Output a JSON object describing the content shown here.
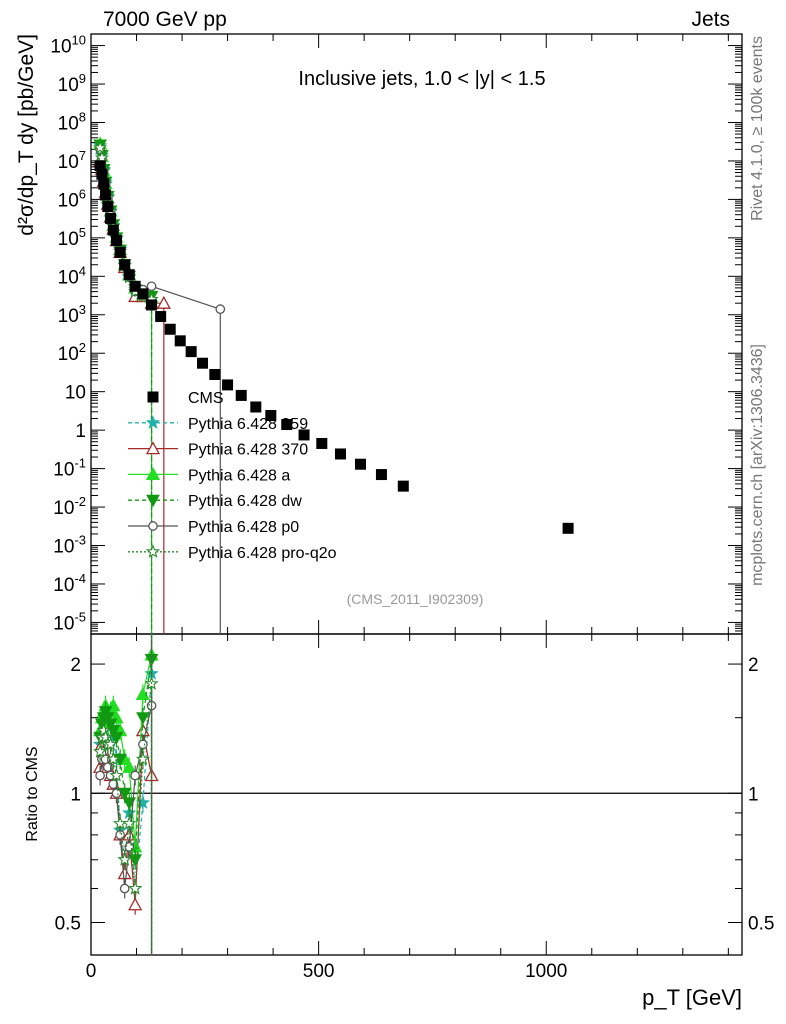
{
  "header": {
    "left": "7000 GeV pp",
    "right": "Jets"
  },
  "side": {
    "rivet": "Rivet 4.1.0, ≥ 100k events",
    "mcplots": "mcplots.cern.ch [arXiv:1306.3436]"
  },
  "chart_data": [
    {
      "type": "scatter",
      "title": "Inclusive jets, 1.0 < |y| < 1.5",
      "ylabel": "d²σ/dp_T dy [pb/GeV]",
      "xlabel": "p_T [GeV]",
      "yscale": "log",
      "xlim": [
        0,
        1430
      ],
      "ylim": [
        5e-06,
        20000000000.0
      ],
      "watermark": "(CMS_2011_I902309)",
      "x_ticks": [
        "0",
        "500",
        "1000"
      ],
      "y_ticks": [
        "10^10",
        "10^9",
        "10^8",
        "10^7",
        "10^6",
        "10^5",
        "10^4",
        "10^3",
        "10^2",
        "10",
        "1",
        "10^-1",
        "10^-2",
        "10^-3",
        "10^-4",
        "10^-5"
      ],
      "legend": [
        "CMS",
        "Pythia 6.428 359",
        "Pythia 6.428 370",
        "Pythia 6.428 a",
        "Pythia 6.428 dw",
        "Pythia 6.428 p0",
        "Pythia 6.428 pro-q2o"
      ],
      "series": [
        {
          "name": "CMS",
          "color": "#000000",
          "marker": "square",
          "x": [
            20,
            24,
            28,
            32,
            37,
            43,
            49,
            56,
            64,
            74,
            84,
            97,
            114,
            133,
            153,
            174,
            196,
            220,
            245,
            272,
            300,
            330,
            362,
            395,
            430,
            468,
            507,
            548,
            592,
            638,
            686,
            1048
          ],
          "y": [
            7500000.0,
            4500000.0,
            2500000.0,
            1300000.0,
            650000.0,
            320000.0,
            160000.0,
            85000.0,
            42000.0,
            20000.0,
            11000.0,
            5500.0,
            3500.0,
            1800.0,
            900.0,
            420.0,
            210.0,
            110.0,
            55,
            28,
            15,
            8,
            4,
            2.4,
            1.4,
            0.75,
            0.45,
            0.24,
            0.13,
            0.07,
            0.035,
            0.0028
          ]
        },
        {
          "name": "Pythia 6.428 359",
          "color": "#20b2aa",
          "marker": "star",
          "x": [
            20,
            24,
            28,
            32,
            37,
            43,
            49,
            56,
            64,
            74,
            84,
            97,
            114,
            133
          ],
          "y": [
            25000000.0,
            14000000.0,
            6000000.0,
            2800000.0,
            1200000.0,
            500000.0,
            210000.0,
            100000.0,
            50000.0,
            20000.0,
            10000.0,
            4500.0,
            3000.0,
            2000.0
          ]
        },
        {
          "name": "Pythia 6.428 370",
          "color": "#a52a2a",
          "marker": "triangle-open",
          "x": [
            20,
            24,
            28,
            32,
            37,
            43,
            49,
            56,
            64,
            74,
            84,
            97,
            114,
            133,
            160
          ],
          "y": [
            10000000.0,
            6000000.0,
            3000000.0,
            1500000.0,
            750000.0,
            350000.0,
            170000.0,
            85000.0,
            42000.0,
            17000.0,
            11000.0,
            3000.0,
            3000.0,
            2000.0,
            2000.0
          ]
        },
        {
          "name": "Pythia 6.428 a",
          "color": "#22dd22",
          "marker": "triangle",
          "x": [
            20,
            24,
            28,
            32,
            37,
            43,
            49,
            56,
            64,
            74,
            84,
            97,
            114,
            133
          ],
          "y": [
            28000000.0,
            13000000.0,
            5500000.0,
            2600000.0,
            1100000.0,
            500000.0,
            210000.0,
            105000.0,
            50000.0,
            20000.0,
            11000.0,
            5000.0,
            3500.0,
            2800.0
          ]
        },
        {
          "name": "Pythia 6.428 dw",
          "color": "#119911",
          "marker": "triangle-down",
          "x": [
            20,
            24,
            28,
            32,
            37,
            43,
            49,
            56,
            64,
            74,
            84,
            97,
            114,
            133
          ],
          "y": [
            26000000.0,
            14000000.0,
            6000000.0,
            2800000.0,
            1200000.0,
            500000.0,
            220000.0,
            100000.0,
            48000.0,
            20000.0,
            10000.0,
            4500.0,
            3500.0,
            3000.0
          ]
        },
        {
          "name": "Pythia 6.428 p0",
          "color": "#555555",
          "marker": "circle-open",
          "x": [
            20,
            24,
            28,
            32,
            37,
            43,
            49,
            56,
            64,
            74,
            84,
            97,
            114,
            133,
            284
          ],
          "y": [
            20000000.0,
            11000000.0,
            5000000.0,
            2300000.0,
            1000000.0,
            450000.0,
            190000.0,
            90000.0,
            43000.0,
            18000.0,
            9500.0,
            4000.0,
            4500.0,
            5500.0,
            1400.0
          ]
        },
        {
          "name": "Pythia 6.428 pro-q2o",
          "color": "#2e8b2e",
          "marker": "star-open",
          "x": [
            20,
            24,
            28,
            32,
            37,
            43,
            49,
            56,
            64,
            74,
            84,
            97,
            114,
            133
          ],
          "y": [
            22000000.0,
            12000000.0,
            5500000.0,
            2500000.0,
            1100000.0,
            480000.0,
            200000.0,
            95000.0,
            45000.0,
            19000.0,
            9500.0,
            4000.0,
            3000.0,
            2500.0
          ]
        }
      ]
    },
    {
      "type": "scatter",
      "ylabel": "Ratio to CMS",
      "xlabel": "p_T [GeV]",
      "yscale": "log",
      "xlim": [
        0,
        1430
      ],
      "ylim": [
        0.42,
        2.35
      ],
      "y_ticks": [
        "2",
        "1",
        "0.5"
      ],
      "reference_line": 1,
      "series": [
        {
          "name": "Pythia 6.428 359",
          "color": "#20b2aa",
          "x": [
            20,
            24,
            28,
            32,
            37,
            43,
            49,
            56,
            64,
            74,
            84,
            97,
            114,
            133
          ],
          "y": [
            1.3,
            1.35,
            1.45,
            1.4,
            1.45,
            1.45,
            1.35,
            1.2,
            0.82,
            0.7,
            0.9,
            0.6,
            0.95,
            1.9
          ]
        },
        {
          "name": "Pythia 6.428 370",
          "color": "#a52a2a",
          "x": [
            20,
            24,
            28,
            32,
            37,
            43,
            49,
            56,
            64,
            74,
            84,
            97,
            114,
            133
          ],
          "y": [
            1.15,
            1.3,
            1.25,
            1.2,
            1.15,
            1.1,
            1.05,
            1.0,
            0.8,
            0.65,
            0.8,
            0.55,
            1.4,
            1.1
          ]
        },
        {
          "name": "Pythia 6.428 a",
          "color": "#22dd22",
          "x": [
            20,
            24,
            28,
            32,
            37,
            43,
            49,
            56,
            64,
            74,
            84,
            97,
            114,
            133
          ],
          "y": [
            1.4,
            1.5,
            1.55,
            1.6,
            1.45,
            1.55,
            1.6,
            1.5,
            1.4,
            1.2,
            1.15,
            0.75,
            1.7,
            2.1
          ]
        },
        {
          "name": "Pythia 6.428 dw",
          "color": "#119911",
          "x": [
            20,
            24,
            28,
            32,
            37,
            43,
            49,
            56,
            64,
            74,
            84,
            97,
            114,
            133
          ],
          "y": [
            1.35,
            1.45,
            1.5,
            1.55,
            1.5,
            1.45,
            1.4,
            1.35,
            1.2,
            1.0,
            0.95,
            0.7,
            1.5,
            2.05
          ]
        },
        {
          "name": "Pythia 6.428 p0",
          "color": "#555555",
          "x": [
            20,
            24,
            28,
            32,
            37,
            43,
            49,
            56,
            64,
            74,
            84,
            97,
            114,
            133
          ],
          "y": [
            1.1,
            1.2,
            1.25,
            1.2,
            1.15,
            1.1,
            1.05,
            1.0,
            0.8,
            0.6,
            0.75,
            1.1,
            1.3,
            1.6
          ]
        },
        {
          "name": "Pythia 6.428 pro-q2o",
          "color": "#2e8b2e",
          "x": [
            20,
            24,
            28,
            32,
            37,
            43,
            49,
            56,
            64,
            74,
            84,
            97,
            114,
            133
          ],
          "y": [
            1.25,
            1.35,
            1.4,
            1.35,
            1.3,
            1.3,
            1.2,
            1.1,
            0.85,
            0.7,
            0.85,
            0.6,
            1.2,
            1.8
          ]
        }
      ]
    }
  ]
}
